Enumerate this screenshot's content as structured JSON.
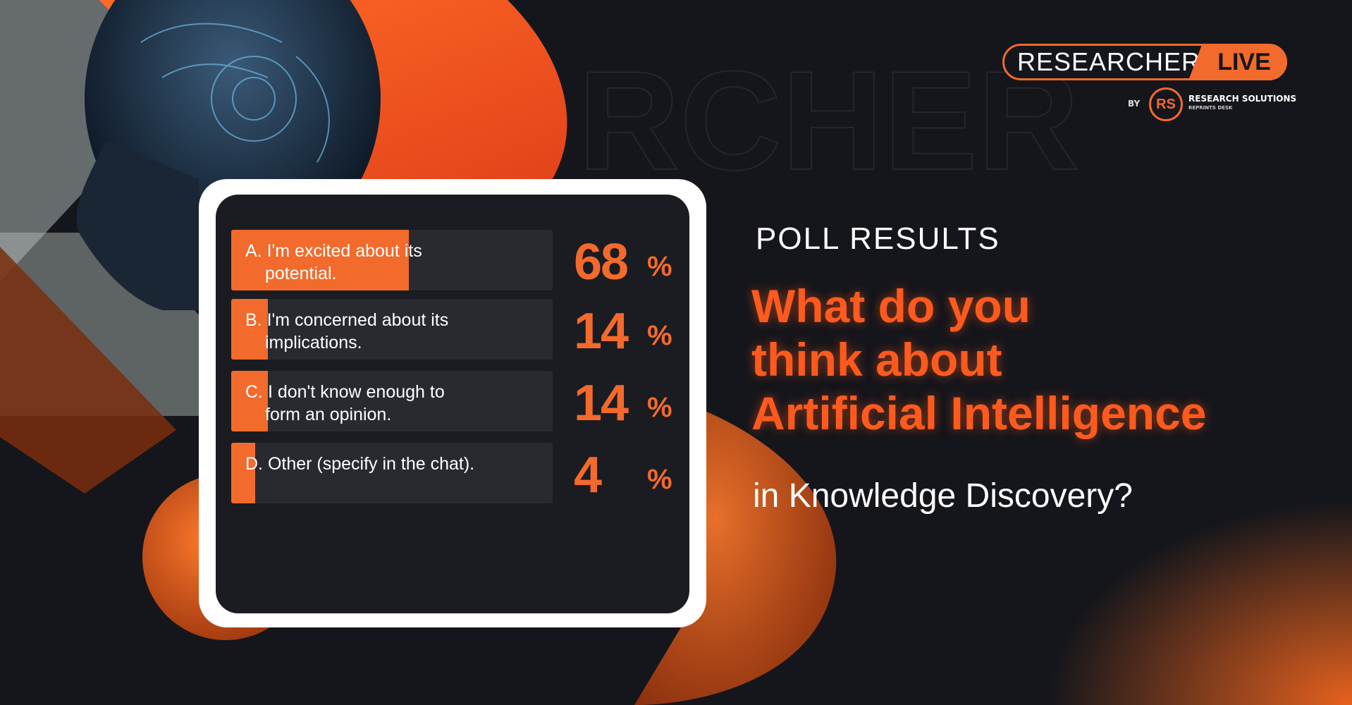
{
  "logo": {
    "name_left": "RESEARCHER",
    "name_right": "LIVE",
    "by": "BY",
    "monogram": "RS",
    "company": "RESEARCH SOLUTIONS",
    "company_sub": "REPRINTS DESK"
  },
  "header": {
    "kicker": "POLL RESULTS",
    "question_lines": [
      "What do you",
      "think about",
      "Artificial Intelligence"
    ],
    "question_tail": "in Knowledge Discovery?"
  },
  "colors": {
    "accent": "#f26a2c",
    "background": "#15161b",
    "card": "#1b1c21",
    "track": "#292a2f"
  },
  "chart_data": {
    "type": "bar",
    "orientation": "horizontal",
    "categories": [
      [
        "A. I'm excited about its",
        "potential."
      ],
      [
        "B. I'm concerned about its",
        "implications."
      ],
      [
        "C. I don't know enough to",
        "form an opinion."
      ],
      [
        "D. Other (specify in the chat)."
      ]
    ],
    "values": [
      68,
      14,
      14,
      4
    ],
    "value_suffix": "%",
    "ylim": [
      0,
      100
    ]
  }
}
